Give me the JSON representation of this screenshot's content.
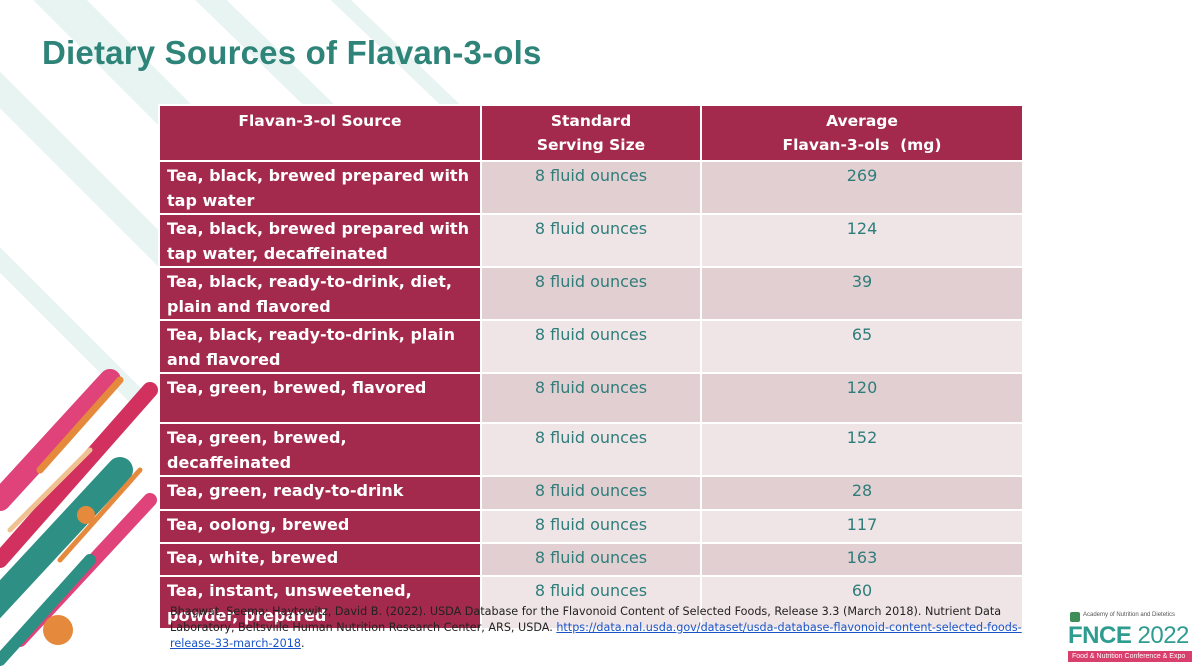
{
  "slide": {
    "title": "Dietary Sources of Flavan-3-ols"
  },
  "table": {
    "headers": {
      "source": "Flavan-3-ol Source",
      "serving_line1": "Standard",
      "serving_line2": "Serving Size",
      "average_line1": "Average",
      "average_line2": "Flavan-3-ols  (mg)"
    },
    "rows": [
      {
        "source": "Tea, black, brewed prepared with tap water",
        "serving": "8 fluid ounces",
        "amount": "269"
      },
      {
        "source": "Tea, black, brewed prepared with tap water, decaffeinated",
        "serving": "8 fluid ounces",
        "amount": "124"
      },
      {
        "source": "Tea, black, ready-to-drink, diet, plain and flavored",
        "serving": "8 fluid ounces",
        "amount": "39"
      },
      {
        "source": "Tea, black, ready-to-drink, plain and flavored",
        "serving": "8 fluid ounces",
        "amount": "65"
      },
      {
        "source": "Tea, green, brewed, flavored",
        "serving": "8 fluid ounces",
        "amount": "120"
      },
      {
        "source": "Tea, green, brewed, decaffeinated",
        "serving": "8 fluid ounces",
        "amount": "152"
      },
      {
        "source": "Tea, green, ready-to-drink",
        "serving": "8 fluid ounces",
        "amount": "28"
      },
      {
        "source": "Tea, oolong, brewed",
        "serving": "8 fluid ounces",
        "amount": "117"
      },
      {
        "source": "Tea, white, brewed",
        "serving": "8 fluid ounces",
        "amount": "163"
      },
      {
        "source": "Tea, instant, unsweetened, powder, prepared",
        "serving": "8 fluid ounces",
        "amount": "60"
      }
    ]
  },
  "citation": {
    "text": "Bhagwat, Seema; Haytowitz, David B. (2022). USDA Database for the Flavonoid Content of Selected Foods, Release 3.3 (March 2018). Nutrient Data Laboratory, Beltsville Human Nutrition Research Center, ARS, USDA. ",
    "link_text": "https://data.nal.usda.gov/dataset/usda-database-flavonoid-content-selected-foods-release-33-march-2018",
    "after_link": "."
  },
  "branding": {
    "org_small": "Academy of Nutrition and Dietetics",
    "event_name": "FNCE",
    "event_year": "2022",
    "tagline": "Food & Nutrition Conference & Expo"
  },
  "colors": {
    "title": "#2e8478",
    "header_bg": "#a32a4c",
    "value_text": "#2e7d7a",
    "row_odd": "#e2cfd2",
    "row_even": "#efe5e7"
  }
}
